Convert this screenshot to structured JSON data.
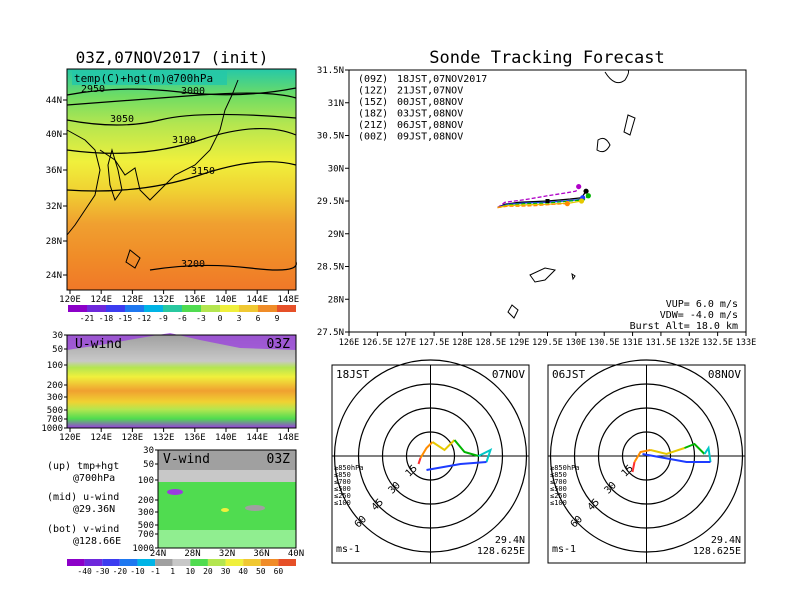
{
  "left": {
    "title": "03Z,07NOV2017 (init)",
    "map": {
      "label": "temp(C)+hgt(m)@700hPa",
      "lat_ticks": [
        "44N",
        "40N",
        "36N",
        "32N",
        "28N",
        "24N"
      ],
      "lon_ticks": [
        "120E",
        "124E",
        "128E",
        "132E",
        "136E",
        "140E",
        "144E",
        "148E"
      ],
      "contours": [
        "2950",
        "3000",
        "3050",
        "3100",
        "3150",
        "3200"
      ],
      "colorbar_ticks": [
        "-21",
        "-18",
        "-15",
        "-12",
        "-9",
        "-6",
        "-3",
        "0",
        "3",
        "6",
        "9"
      ]
    },
    "uwind": {
      "label": "U-wind",
      "time": "03Z",
      "p_ticks": [
        "30",
        "50",
        "100",
        "200",
        "300",
        "500",
        "700",
        "1000"
      ],
      "lon_ticks": [
        "120E",
        "124E",
        "128E",
        "132E",
        "136E",
        "140E",
        "144E",
        "148E"
      ]
    },
    "vwind": {
      "label": "V-wind",
      "time": "03Z",
      "p_ticks": [
        "30",
        "50",
        "100",
        "200",
        "300",
        "500",
        "700",
        "1000"
      ],
      "lat_ticks": [
        "24N",
        "28N",
        "32N",
        "36N",
        "40N"
      ]
    },
    "legend": {
      "up1": "(up) tmp+hgt",
      "up2": "@700hPa",
      "mid1": "(mid) u-wind",
      "mid2": "@29.36N",
      "bot1": "(bot) v-wind",
      "bot2": "@128.66E"
    },
    "wind_colorbar_ticks": [
      "-40",
      "-30",
      "-20",
      "-10",
      "-1",
      "1",
      "10",
      "20",
      "30",
      "40",
      "50",
      "60"
    ]
  },
  "right": {
    "title": "Sonde Tracking Forecast",
    "launches": [
      {
        "code": "(09Z)",
        "time": "18JST,07NOV2017",
        "color": "#000000"
      },
      {
        "code": "(12Z)",
        "time": "21JST,07NOV",
        "color": "#b000c8"
      },
      {
        "code": "(15Z)",
        "time": "00JST,08NOV",
        "color": "#1e3cff"
      },
      {
        "code": "(18Z)",
        "time": "03JST,08NOV",
        "color": "#00b400"
      },
      {
        "code": "(21Z)",
        "time": "06JST,08NOV",
        "color": "#e6c800"
      },
      {
        "code": "(00Z)",
        "time": "09JST,08NOV",
        "color": "#ff8c00"
      }
    ],
    "params": {
      "vup": "VUP= 6.0 m/s",
      "vdw": "VDW= -4.0 m/s",
      "burst": "Burst Alt= 18.0 km"
    },
    "lat_ticks": [
      "31.5N",
      "31N",
      "30.5N",
      "30N",
      "29.5N",
      "29N",
      "28.5N",
      "28N",
      "27.5N"
    ],
    "lon_ticks": [
      "126E",
      "126.5E",
      "127E",
      "127.5E",
      "128E",
      "128.5E",
      "129E",
      "129.5E",
      "130E",
      "130.5E",
      "131E",
      "131.5E",
      "132E",
      "132.5E",
      "133E"
    ],
    "hodo1": {
      "time": "18JST",
      "date": "07NOV",
      "lat": "29.4N",
      "lon": "128.625E",
      "unit": "ms-1"
    },
    "hodo2": {
      "time": "06JST",
      "date": "08NOV",
      "lat": "29.4N",
      "lon": "128.625E",
      "unit": "ms-1"
    },
    "hodo_ring_labels": [
      "15",
      "30",
      "45",
      "60"
    ],
    "hodo_levels": [
      {
        "label": "≥850hPa",
        "color": "#ff3030"
      },
      {
        "label": "≤850",
        "color": "#ff8c00"
      },
      {
        "label": "≤700",
        "color": "#e6c800"
      },
      {
        "label": "≤500",
        "color": "#00b400"
      },
      {
        "label": "≤250",
        "color": "#00c8c8"
      },
      {
        "label": "≤100",
        "color": "#1e3cff"
      }
    ]
  },
  "chart_data": [
    {
      "type": "line",
      "title": "Sonde Tracking Forecast",
      "xlim": [
        126,
        133
      ],
      "ylim": [
        27.5,
        31.5
      ],
      "series": [
        {
          "name": "(09Z) 18JST,07NOV2017",
          "x": [
            128.62,
            128.75,
            129.0,
            129.5,
            129.9,
            130.1,
            130.18
          ],
          "y": [
            29.4,
            29.45,
            29.48,
            29.5,
            29.53,
            29.55,
            29.65
          ]
        },
        {
          "name": "(12Z) 21JST,07NOV",
          "x": [
            128.62,
            128.75,
            129.1,
            129.5,
            129.8,
            130.0,
            130.05
          ],
          "y": [
            29.4,
            29.48,
            29.52,
            29.58,
            29.62,
            29.65,
            29.72
          ]
        },
        {
          "name": "(15Z) 00JST,08NOV",
          "x": [
            128.62,
            128.8,
            129.1,
            129.5,
            129.8,
            130.05,
            130.12
          ],
          "y": [
            29.4,
            29.45,
            29.47,
            29.48,
            29.5,
            29.52,
            29.55
          ]
        },
        {
          "name": "(18Z) 03JST,08NOV",
          "x": [
            128.62,
            128.8,
            129.1,
            129.5,
            129.9,
            130.15,
            130.22
          ],
          "y": [
            29.4,
            29.44,
            29.46,
            29.47,
            29.5,
            29.52,
            29.58
          ]
        },
        {
          "name": "(21Z) 06JST,08NOV",
          "x": [
            128.62,
            128.8,
            129.1,
            129.5,
            129.9,
            130.1
          ],
          "y": [
            29.4,
            29.43,
            29.44,
            29.45,
            29.47,
            29.5
          ]
        },
        {
          "name": "(00Z) 09JST,08NOV",
          "x": [
            128.62,
            128.8,
            129.0,
            129.3,
            129.6,
            129.85
          ],
          "y": [
            29.4,
            29.42,
            29.42,
            29.43,
            29.45,
            29.46
          ]
        }
      ]
    }
  ]
}
